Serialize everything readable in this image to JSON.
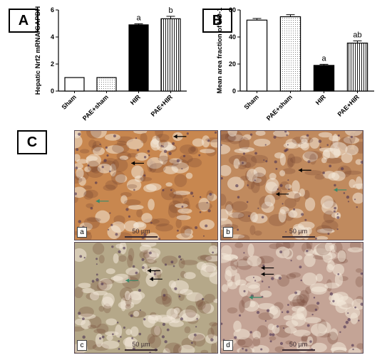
{
  "panels": {
    "A": "A",
    "B": "B",
    "C": "C"
  },
  "chart_data": [
    {
      "type": "bar",
      "panel": "A",
      "ylabel": "Hepatic Nrf2 mRNA/GAPDH",
      "xlabel": "",
      "ylim": [
        0,
        6
      ],
      "yticks": [
        0,
        2,
        4,
        6
      ],
      "categories": [
        "Sham",
        "PAE+sham",
        "HIR",
        "PAE+HIR"
      ],
      "values": [
        1.0,
        1.0,
        4.9,
        5.35
      ],
      "errors": [
        0,
        0,
        0.08,
        0.18
      ],
      "significance": [
        "",
        "",
        "a",
        "b"
      ],
      "fills": [
        "white",
        "dotted",
        "black",
        "vertical-lines"
      ]
    },
    {
      "type": "bar",
      "panel": "B",
      "ylabel": "Mean area fraction of HO-1",
      "xlabel": "",
      "ylim": [
        0,
        60
      ],
      "yticks": [
        0,
        20,
        40,
        60
      ],
      "categories": [
        "Sham",
        "PAE+sham",
        "HIR",
        "PAE+HIR"
      ],
      "values": [
        52.5,
        55.0,
        19.0,
        35.5
      ],
      "errors": [
        1.2,
        1.5,
        0.8,
        1.6
      ],
      "significance": [
        "",
        "",
        "a",
        "ab"
      ],
      "fills": [
        "white",
        "dotted",
        "black",
        "vertical-lines"
      ]
    }
  ],
  "micrographs": [
    {
      "letter": "a",
      "scale": "50 µm",
      "tone": "#c8874f"
    },
    {
      "letter": "b",
      "scale": "50 µm",
      "tone": "#c08a5e"
    },
    {
      "letter": "c",
      "scale": "50 µm",
      "tone": "#b5a889"
    },
    {
      "letter": "d",
      "scale": "50 µm",
      "tone": "#c4a496"
    }
  ]
}
